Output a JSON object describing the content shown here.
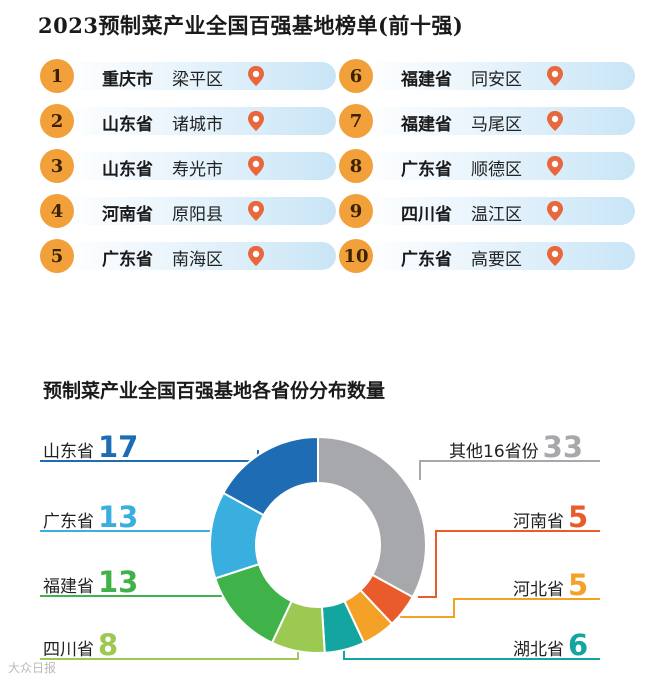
{
  "title": "2023预制菜产业全国百强基地榜单(前十强)",
  "rankings": [
    {
      "rank": "1",
      "province": "重庆市",
      "city": "梁平区"
    },
    {
      "rank": "2",
      "province": "山东省",
      "city": "诸城市"
    },
    {
      "rank": "3",
      "province": "山东省",
      "city": "寿光市"
    },
    {
      "rank": "4",
      "province": "河南省",
      "city": "原阳县"
    },
    {
      "rank": "5",
      "province": "广东省",
      "city": "南海区"
    },
    {
      "rank": "6",
      "province": "福建省",
      "city": "同安区"
    },
    {
      "rank": "7",
      "province": "福建省",
      "city": "马尾区"
    },
    {
      "rank": "8",
      "province": "广东省",
      "city": "顺德区"
    },
    {
      "rank": "9",
      "province": "四川省",
      "city": "温江区"
    },
    {
      "rank": "10",
      "province": "广东省",
      "city": "高要区"
    }
  ],
  "colors": {
    "rank_badge": "#f2a03a",
    "pin": "#e8673c",
    "pill": "#c9e5f6"
  },
  "chart_data": {
    "type": "pie",
    "title": "预制菜产业全国百强基地各省份分布数量",
    "slices": [
      {
        "name": "其他16省份",
        "value": 33,
        "color": "#a7a8ab"
      },
      {
        "name": "河南省",
        "value": 5,
        "color": "#ea5b2b"
      },
      {
        "name": "河北省",
        "value": 5,
        "color": "#f4a128"
      },
      {
        "name": "湖北省",
        "value": 6,
        "color": "#13a6a0"
      },
      {
        "name": "四川省",
        "value": 8,
        "color": "#9cc952"
      },
      {
        "name": "福建省",
        "value": 13,
        "color": "#3fb34a"
      },
      {
        "name": "广东省",
        "value": 13,
        "color": "#39afe0"
      },
      {
        "name": "山东省",
        "value": 17,
        "color": "#1e6cb3"
      }
    ]
  },
  "watermark": "大众日报"
}
